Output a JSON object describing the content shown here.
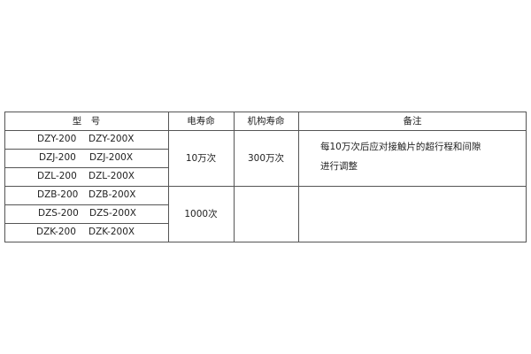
{
  "headers": {
    "model": "型　号",
    "electrical_life": "电寿命",
    "mechanical_life": "机构寿命",
    "remarks": "备注"
  },
  "rows": [
    {
      "model_a": "DZY-200",
      "model_b": "DZY-200X"
    },
    {
      "model_a": "DZJ-200",
      "model_b": "DZJ-200X"
    },
    {
      "model_a": "DZL-200",
      "model_b": "DZL-200X"
    },
    {
      "model_a": "DZB-200",
      "model_b": "DZB-200X"
    },
    {
      "model_a": "DZS-200",
      "model_b": "DZS-200X"
    },
    {
      "model_a": "DZK-200",
      "model_b": "DZK-200X"
    }
  ],
  "groups": [
    {
      "electrical_life": "10万次",
      "mechanical_life": "300万次",
      "remarks_line1": "每10万次后应对接触片的超行程和间隙",
      "remarks_line2": "进行调整"
    },
    {
      "electrical_life": "1000次",
      "mechanical_life": "",
      "remarks_line1": "",
      "remarks_line2": ""
    }
  ]
}
